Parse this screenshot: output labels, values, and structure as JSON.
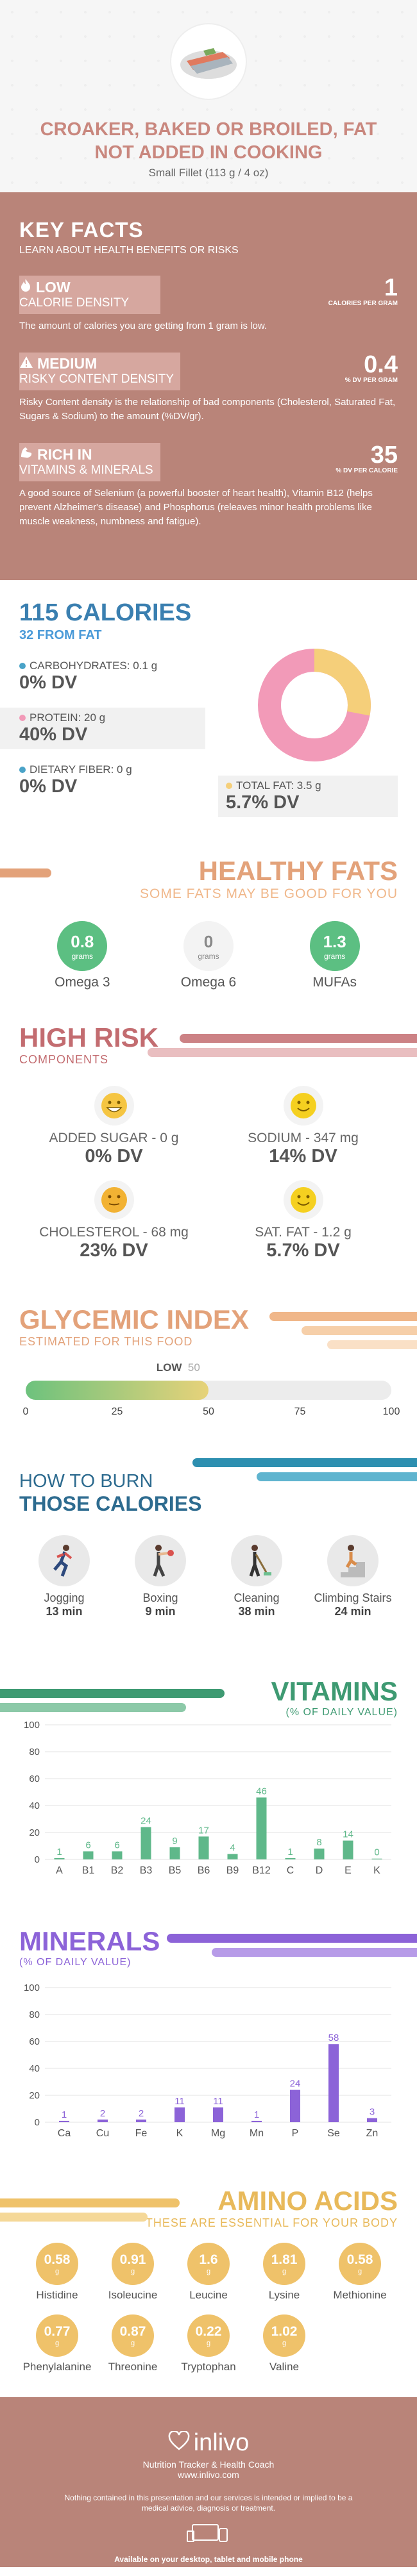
{
  "header": {
    "title": "CROAKER, BAKED OR BROILED, FAT NOT ADDED IN COOKING",
    "subtitle": "Small Fillet (113 g / 4 oz)"
  },
  "key_facts": {
    "title": "KEY FACTS",
    "subtitle": "LEARN ABOUT HEALTH BENEFITS OR RISKS",
    "facts": [
      {
        "level": "LOW",
        "category": "CALORIE DENSITY",
        "value": "1",
        "unit": "CALORIES PER GRAM",
        "desc": "The amount of calories you are getting from 1 gram is low.",
        "icon": "flame-icon"
      },
      {
        "level": "MEDIUM",
        "category": "RISKY CONTENT DENSITY",
        "value": "0.4",
        "unit": "% DV PER GRAM",
        "desc": "Risky Content density is the relationship of bad components (Cholesterol, Saturated Fat, Sugars & Sodium) to the amount (%DV/gr).",
        "icon": "warning-icon"
      },
      {
        "level": "RICH  IN",
        "category": "VITAMINS & MINERALS",
        "value": "35",
        "unit": "% DV PER CALORIE",
        "desc": "A good source of Selenium (a powerful booster of heart health), Vitamin B12 (helps prevent Alzheimer's disease) and Phosphorus (releaves minor health problems like muscle weakness, numbness and fatigue).",
        "icon": "flexed-arm-icon"
      }
    ]
  },
  "calories": {
    "title": "115 CALORIES",
    "subtitle": "32 FROM FAT",
    "carbs": {
      "label": "CARBOHYDRATES: 0.1 g",
      "dv": "0% DV",
      "color": "#4aa3c8"
    },
    "protein": {
      "label": "PROTEIN: 20 g",
      "dv": "40% DV",
      "color": "#f29ab8"
    },
    "fiber": {
      "label": "DIETARY FIBER: 0 g",
      "dv": "0% DV",
      "color": "#4aa3c8"
    },
    "fat": {
      "label": "TOTAL FAT: 3.5 g",
      "dv": "5.7% DV",
      "color": "#f5cf7a"
    },
    "donut": {
      "protein_color": "#f29ab8",
      "fat_color": "#f5cf7a",
      "protein_share": 0.72,
      "fat_share": 0.28
    }
  },
  "healthy_fats": {
    "title": "HEALTHY FATS",
    "subtitle": "SOME FATS MAY BE GOOD FOR YOU",
    "items": [
      {
        "value": "0.8",
        "unit": "grams",
        "name": "Omega 3",
        "color": "#5cbf82"
      },
      {
        "value": "0",
        "unit": "grams",
        "name": "Omega 6",
        "color": "#f3f3f3"
      },
      {
        "value": "1.3",
        "unit": "grams",
        "name": "MUFAs",
        "color": "#5cbf82"
      }
    ]
  },
  "high_risk": {
    "title": "HIGH RISK",
    "subtitle": "COMPONENTS",
    "items": [
      {
        "label": "ADDED SUGAR - 0 g",
        "dv": "0% DV",
        "face": "grin-face-icon"
      },
      {
        "label": "SODIUM - 347 mg",
        "dv": "14% DV",
        "face": "smile-face-icon"
      },
      {
        "label": "CHOLESTEROL - 68 mg",
        "dv": "23% DV",
        "face": "neutral-face-icon"
      },
      {
        "label": "SAT. FAT - 1.2 g",
        "dv": "5.7% DV",
        "face": "smile-face-icon"
      }
    ]
  },
  "glycemic": {
    "title": "GLYCEMIC INDEX",
    "subtitle": "ESTIMATED FOR THIS FOOD",
    "level": "LOW",
    "value": 50,
    "value_text": "50",
    "ticks": [
      "0",
      "25",
      "50",
      "75",
      "100"
    ]
  },
  "burn": {
    "title_line1": "HOW TO BURN",
    "title_line2": "THOSE CALORIES",
    "activities": [
      {
        "name": "Jogging",
        "time": "13 min",
        "icon": "jogging-icon"
      },
      {
        "name": "Boxing",
        "time": "9 min",
        "icon": "boxing-icon"
      },
      {
        "name": "Cleaning",
        "time": "38 min",
        "icon": "cleaning-icon"
      },
      {
        "name": "Climbing Stairs",
        "time": "24 min",
        "icon": "stairs-icon"
      }
    ]
  },
  "vitamins": {
    "title": "VITAMINS",
    "subtitle": "(% OF DAILY VALUE)"
  },
  "minerals": {
    "title": "MINERALS",
    "subtitle": "(% OF DAILY VALUE)"
  },
  "chart_data": [
    {
      "type": "bar",
      "title": "VITAMINS",
      "categories": [
        "A",
        "B1",
        "B2",
        "B3",
        "B5",
        "B6",
        "B9",
        "B12",
        "C",
        "D",
        "E",
        "K"
      ],
      "values": [
        1,
        6,
        6,
        24,
        9,
        17,
        4,
        46,
        1,
        8,
        14,
        0
      ],
      "ylim": [
        0,
        100
      ],
      "yticks": [
        0,
        20,
        40,
        60,
        80,
        100
      ],
      "color": "#5fb88a",
      "grid": true
    },
    {
      "type": "bar",
      "title": "MINERALS",
      "categories": [
        "Ca",
        "Cu",
        "Fe",
        "K",
        "Mg",
        "Mn",
        "P",
        "Se",
        "Zn"
      ],
      "values": [
        1,
        2,
        2,
        11,
        11,
        1,
        24,
        58,
        3
      ],
      "ylim": [
        0,
        100
      ],
      "yticks": [
        0,
        20,
        40,
        60,
        80,
        100
      ],
      "color": "#8c63d8",
      "grid": true
    }
  ],
  "amino": {
    "title": "AMINO ACIDS",
    "subtitle": "THESE ARE ESSENTIAL FOR YOUR BODY",
    "unit": "g",
    "items": [
      {
        "value": "0.58",
        "name": "Histidine"
      },
      {
        "value": "0.91",
        "name": "Isoleucine"
      },
      {
        "value": "1.6",
        "name": "Leucine"
      },
      {
        "value": "1.81",
        "name": "Lysine"
      },
      {
        "value": "0.58",
        "name": "Methionine"
      },
      {
        "value": "0.77",
        "name": "Phenylalanine"
      },
      {
        "value": "0.87",
        "name": "Threonine"
      },
      {
        "value": "0.22",
        "name": "Tryptophan"
      },
      {
        "value": "1.02",
        "name": "Valine"
      }
    ]
  },
  "footer": {
    "brand": "inlivo",
    "tagline": "Nutrition Tracker & Health Coach",
    "url": "www.inlivo.com",
    "disclaimer": "Nothing contained in this presentation and our services is intended or implied to be a medical advice, diagnosis or treatment.",
    "available": "Available on your desktop, tablet and mobile phone"
  }
}
